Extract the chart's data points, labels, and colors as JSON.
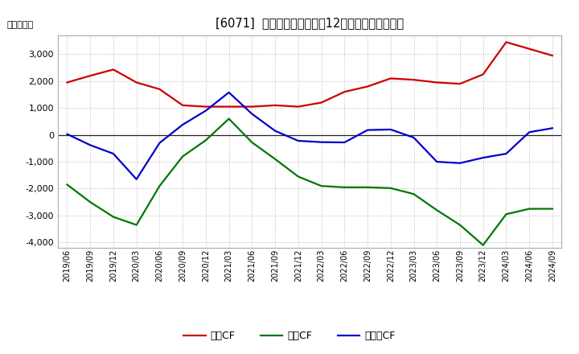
{
  "title": "[6071]  キャッシュフローの12か月移動合計の推移",
  "ylabel": "（百万円）",
  "background_color": "#ffffff",
  "grid_color": "#bbbbbb",
  "x_labels": [
    "2019/06",
    "2019/09",
    "2019/12",
    "2020/03",
    "2020/06",
    "2020/09",
    "2020/12",
    "2021/03",
    "2021/06",
    "2021/09",
    "2021/12",
    "2022/03",
    "2022/06",
    "2022/09",
    "2022/12",
    "2023/03",
    "2023/06",
    "2023/09",
    "2023/12",
    "2024/03",
    "2024/06",
    "2024/09"
  ],
  "eigyo_cf": [
    1950,
    2200,
    2430,
    1950,
    1700,
    1100,
    1050,
    1050,
    1050,
    1100,
    1050,
    1200,
    1600,
    1800,
    2100,
    2050,
    1950,
    1900,
    2250,
    3450,
    3200,
    2950
  ],
  "toshi_cf": [
    -1850,
    -2500,
    -3050,
    -3350,
    -1900,
    -800,
    -200,
    600,
    -280,
    -900,
    -1550,
    -1900,
    -1950,
    -1950,
    -1980,
    -2200,
    -2800,
    -3350,
    -4100,
    -2950,
    -2750,
    -2750
  ],
  "free_cf": [
    30,
    -380,
    -700,
    -1650,
    -300,
    380,
    900,
    1580,
    780,
    150,
    -220,
    -270,
    -280,
    180,
    200,
    -100,
    -1000,
    -1050,
    -850,
    -700,
    100,
    250
  ],
  "line_colors": {
    "eigyo": "#cc0000",
    "toshi": "#007700",
    "free": "#0000cc"
  },
  "legend_labels": [
    "営業CF",
    "投資CF",
    "フリーCF"
  ],
  "ylim": [
    -4200,
    3700
  ],
  "yticks": [
    -4000,
    -3000,
    -2000,
    -1000,
    0,
    1000,
    2000,
    3000
  ]
}
